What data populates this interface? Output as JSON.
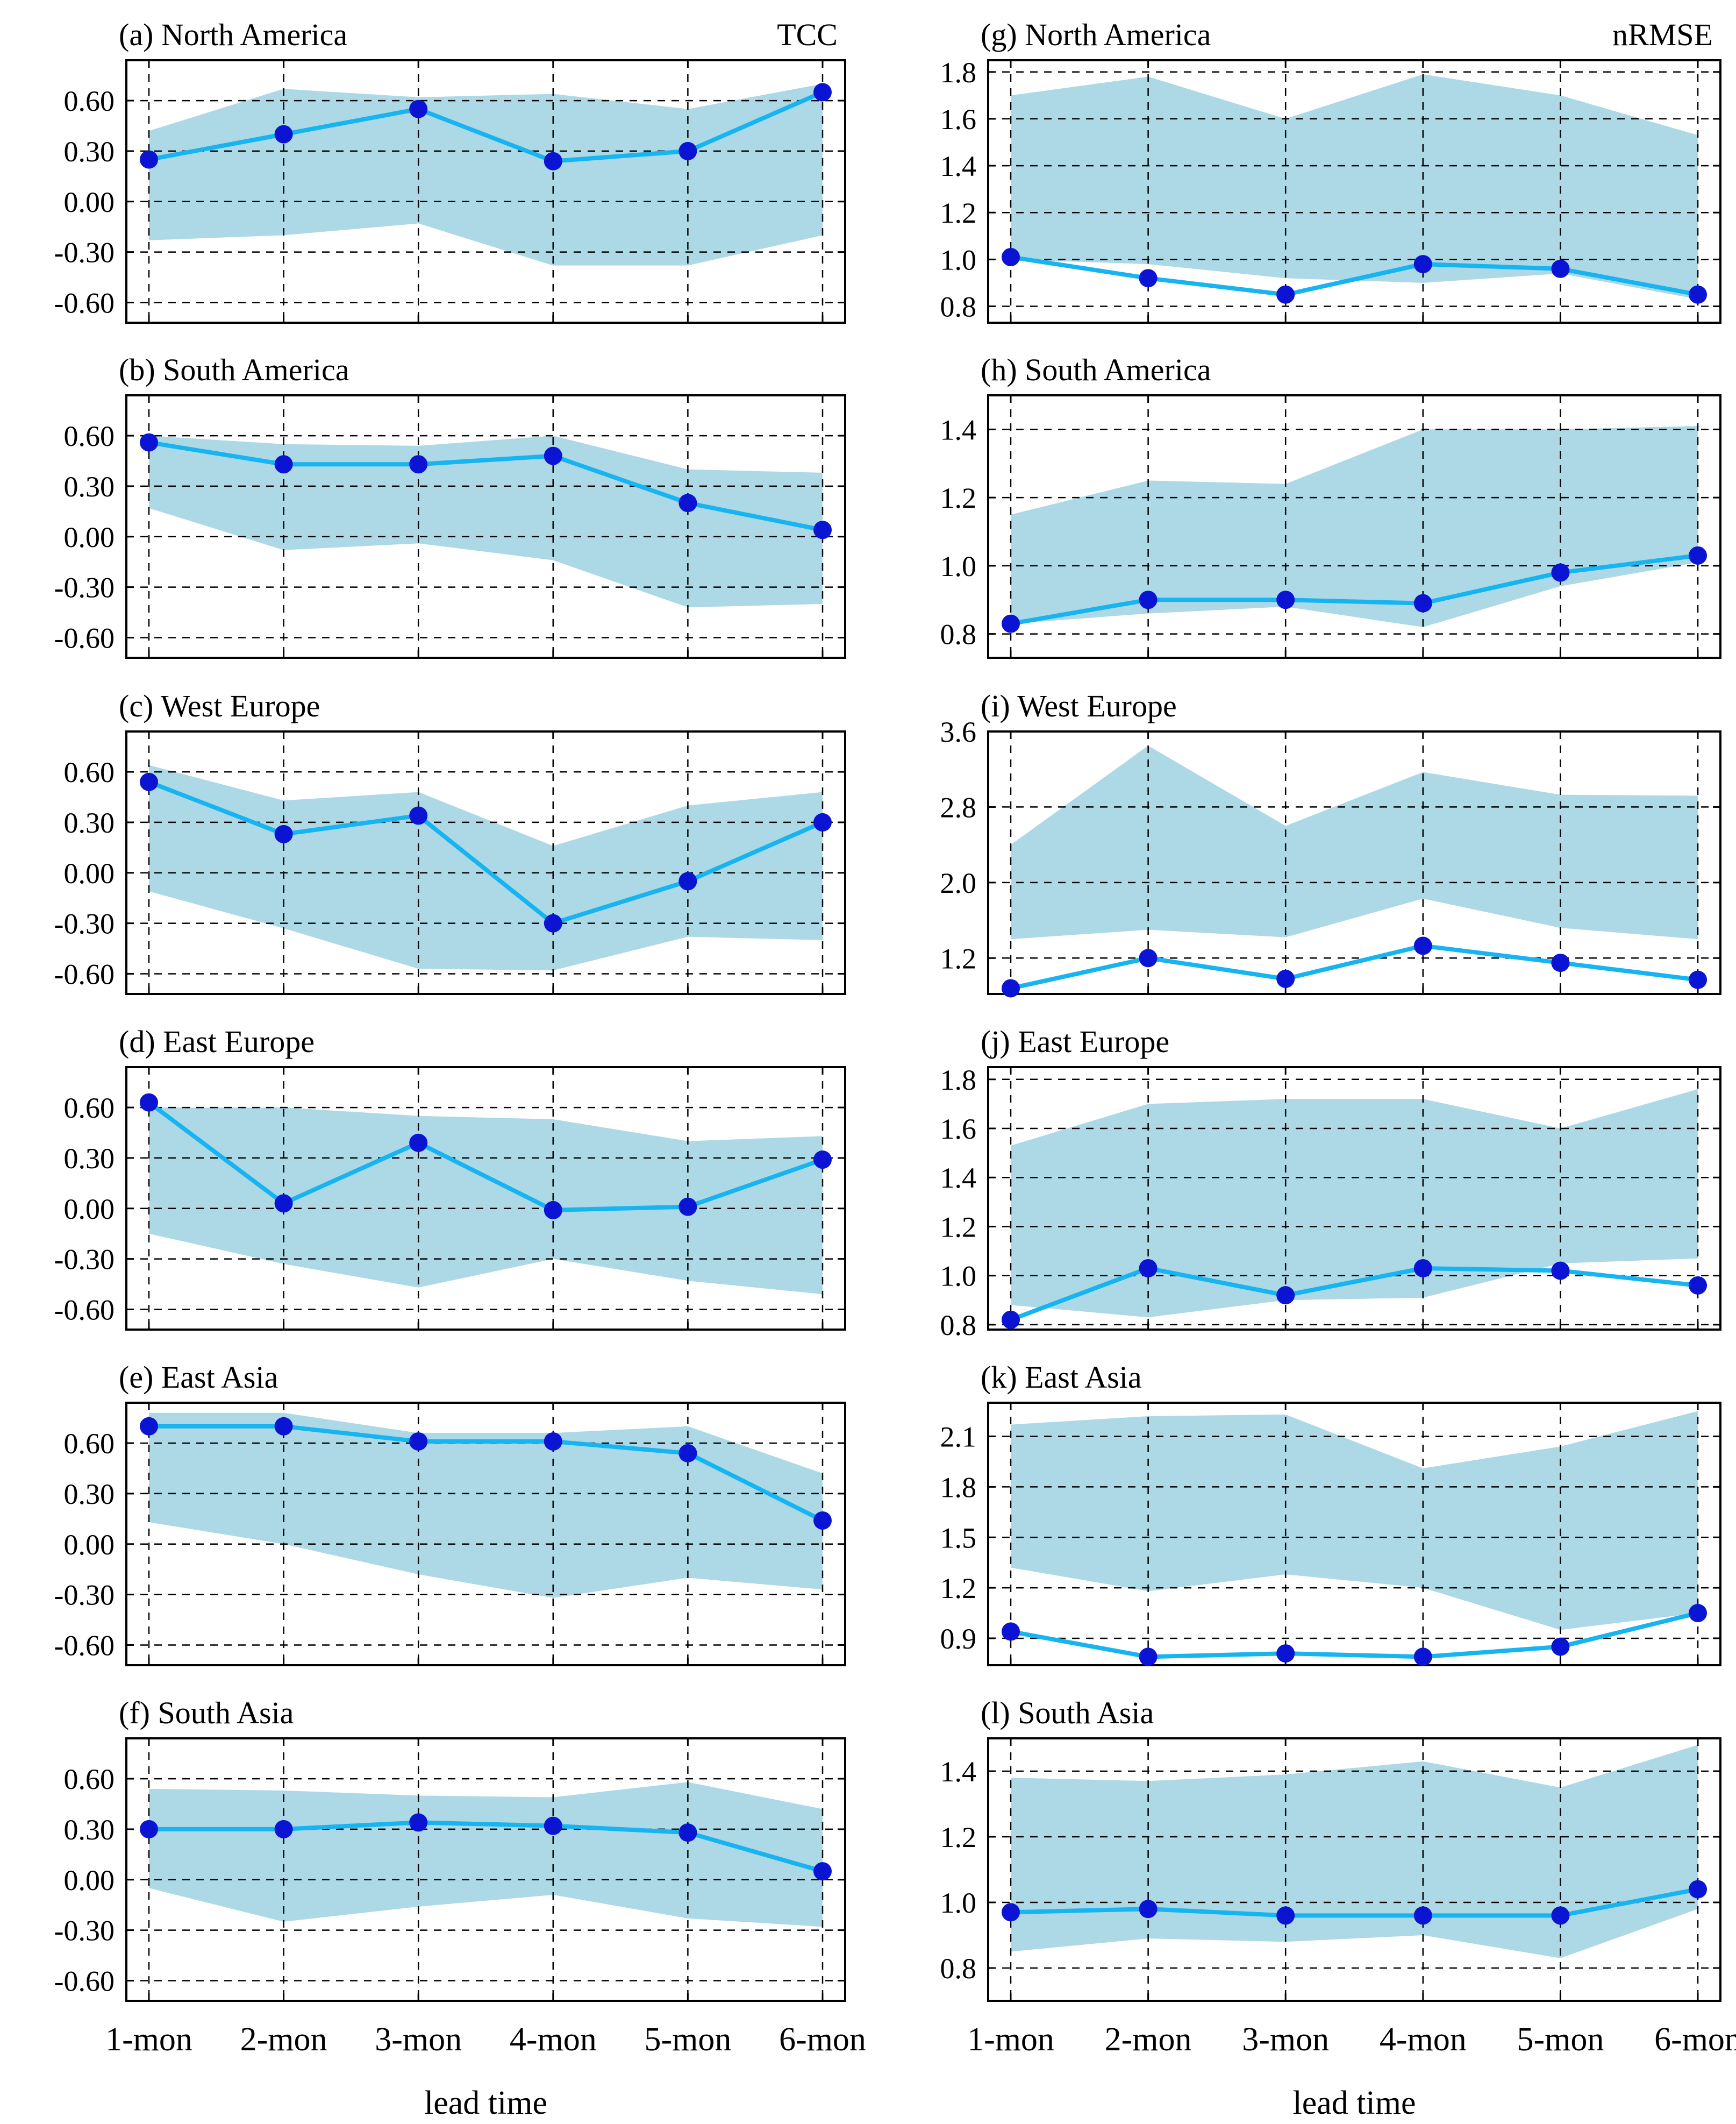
{
  "chart_data": {
    "type": "line",
    "layout": "6 rows x 2 columns; left column TCC, right column nRMSE",
    "x_categories": [
      "1-mon",
      "2-mon",
      "3-mon",
      "4-mon",
      "5-mon",
      "6-mon"
    ],
    "xlabel": "lead time",
    "column_labels": [
      "TCC",
      "nRMSE"
    ],
    "series_colors": {
      "line": "#16b4f0",
      "marker": "#0a14d2",
      "band": "#add8e6"
    },
    "panels": [
      {
        "id": "a",
        "title": "(a) North America",
        "metric": "TCC",
        "ylim": [
          -0.72,
          0.84
        ],
        "yticks": [
          -0.6,
          -0.3,
          0.0,
          0.3,
          0.6
        ],
        "ytick_labels": [
          "-0.60",
          "-0.30",
          "0.00",
          "0.30",
          "0.60"
        ],
        "values": [
          0.25,
          0.4,
          0.55,
          0.24,
          0.3,
          0.65
        ],
        "band_upper": [
          0.42,
          0.67,
          0.62,
          0.64,
          0.55,
          0.7
        ],
        "band_lower": [
          -0.23,
          -0.2,
          -0.13,
          -0.38,
          -0.38,
          -0.2
        ]
      },
      {
        "id": "b",
        "title": "(b) South America",
        "metric": "TCC",
        "ylim": [
          -0.72,
          0.84
        ],
        "yticks": [
          -0.6,
          -0.3,
          0.0,
          0.3,
          0.6
        ],
        "ytick_labels": [
          "-0.60",
          "-0.30",
          "0.00",
          "0.30",
          "0.60"
        ],
        "values": [
          0.56,
          0.43,
          0.43,
          0.48,
          0.2,
          0.04
        ],
        "band_upper": [
          0.6,
          0.55,
          0.54,
          0.6,
          0.4,
          0.38
        ],
        "band_lower": [
          0.17,
          -0.08,
          -0.04,
          -0.14,
          -0.42,
          -0.4
        ]
      },
      {
        "id": "c",
        "title": "(c) West Europe",
        "metric": "TCC",
        "ylim": [
          -0.72,
          0.84
        ],
        "yticks": [
          -0.6,
          -0.3,
          0.0,
          0.3,
          0.6
        ],
        "ytick_labels": [
          "-0.60",
          "-0.30",
          "0.00",
          "0.30",
          "0.60"
        ],
        "values": [
          0.54,
          0.23,
          0.34,
          -0.3,
          -0.05,
          0.3
        ],
        "band_upper": [
          0.64,
          0.43,
          0.48,
          0.16,
          0.4,
          0.48
        ],
        "band_lower": [
          -0.11,
          -0.33,
          -0.57,
          -0.58,
          -0.38,
          -0.4
        ]
      },
      {
        "id": "d",
        "title": "(d) East Europe",
        "metric": "TCC",
        "ylim": [
          -0.72,
          0.84
        ],
        "yticks": [
          -0.6,
          -0.3,
          0.0,
          0.3,
          0.6
        ],
        "ytick_labels": [
          "-0.60",
          "-0.30",
          "0.00",
          "0.30",
          "0.60"
        ],
        "values": [
          0.63,
          0.03,
          0.39,
          -0.01,
          0.01,
          0.29
        ],
        "band_upper": [
          0.6,
          0.6,
          0.55,
          0.53,
          0.4,
          0.43
        ],
        "band_lower": [
          -0.15,
          -0.33,
          -0.47,
          -0.3,
          -0.43,
          -0.51
        ]
      },
      {
        "id": "e",
        "title": "(e) East Asia",
        "metric": "TCC",
        "ylim": [
          -0.72,
          0.84
        ],
        "yticks": [
          -0.6,
          -0.3,
          0.0,
          0.3,
          0.6
        ],
        "ytick_labels": [
          "-0.60",
          "-0.30",
          "0.00",
          "0.30",
          "0.60"
        ],
        "values": [
          0.7,
          0.7,
          0.61,
          0.61,
          0.54,
          0.14
        ],
        "band_upper": [
          0.78,
          0.78,
          0.66,
          0.66,
          0.7,
          0.42
        ],
        "band_lower": [
          0.13,
          0.0,
          -0.18,
          -0.32,
          -0.2,
          -0.27
        ]
      },
      {
        "id": "f",
        "title": "(f) South Asia",
        "metric": "TCC",
        "ylim": [
          -0.72,
          0.84
        ],
        "yticks": [
          -0.6,
          -0.3,
          0.0,
          0.3,
          0.6
        ],
        "ytick_labels": [
          "-0.60",
          "-0.30",
          "0.00",
          "0.30",
          "0.60"
        ],
        "values": [
          0.3,
          0.3,
          0.34,
          0.32,
          0.28,
          0.05
        ],
        "band_upper": [
          0.54,
          0.53,
          0.5,
          0.49,
          0.58,
          0.42
        ],
        "band_lower": [
          -0.05,
          -0.25,
          -0.16,
          -0.09,
          -0.23,
          -0.28
        ]
      },
      {
        "id": "g",
        "title": "(g) North America",
        "metric": "nRMSE",
        "ylim": [
          0.73,
          1.85
        ],
        "yticks": [
          0.8,
          1.0,
          1.2,
          1.4,
          1.6,
          1.8
        ],
        "ytick_labels": [
          "0.8",
          "1.0",
          "1.2",
          "1.4",
          "1.6",
          "1.8"
        ],
        "values": [
          1.01,
          0.92,
          0.85,
          0.98,
          0.96,
          0.85
        ],
        "band_upper": [
          1.7,
          1.78,
          1.6,
          1.79,
          1.7,
          1.53
        ],
        "band_lower": [
          1.0,
          0.98,
          0.92,
          0.9,
          0.94,
          0.83
        ]
      },
      {
        "id": "h",
        "title": "(h) South America",
        "metric": "nRMSE",
        "ylim": [
          0.73,
          1.5
        ],
        "yticks": [
          0.8,
          1.0,
          1.2,
          1.4
        ],
        "ytick_labels": [
          "0.8",
          "1.0",
          "1.2",
          "1.4"
        ],
        "values": [
          0.83,
          0.9,
          0.9,
          0.89,
          0.98,
          1.03
        ],
        "band_upper": [
          1.15,
          1.25,
          1.24,
          1.4,
          1.4,
          1.41
        ],
        "band_lower": [
          0.83,
          0.86,
          0.88,
          0.82,
          0.94,
          1.01
        ]
      },
      {
        "id": "i",
        "title": "(i) West Europe",
        "metric": "nRMSE",
        "ylim": [
          0.82,
          3.6
        ],
        "yticks": [
          1.2,
          2.0,
          2.8,
          3.6
        ],
        "ytick_labels": [
          "1.2",
          "2.0",
          "2.8",
          "3.6"
        ],
        "values": [
          0.88,
          1.2,
          0.98,
          1.33,
          1.15,
          0.97
        ],
        "band_upper": [
          2.4,
          3.45,
          2.6,
          3.17,
          2.93,
          2.92
        ],
        "band_lower": [
          1.4,
          1.5,
          1.42,
          1.83,
          1.52,
          1.4
        ]
      },
      {
        "id": "j",
        "title": "(j) East Europe",
        "metric": "nRMSE",
        "ylim": [
          0.78,
          1.85
        ],
        "yticks": [
          0.8,
          1.0,
          1.2,
          1.4,
          1.6,
          1.8
        ],
        "ytick_labels": [
          "0.8",
          "1.0",
          "1.2",
          "1.4",
          "1.6",
          "1.8"
        ],
        "values": [
          0.82,
          1.03,
          0.92,
          1.03,
          1.02,
          0.96
        ],
        "band_upper": [
          1.53,
          1.7,
          1.72,
          1.72,
          1.6,
          1.76
        ],
        "band_lower": [
          0.88,
          0.83,
          0.9,
          0.91,
          1.05,
          1.07
        ]
      },
      {
        "id": "k",
        "title": "(k) East Asia",
        "metric": "nRMSE",
        "ylim": [
          0.74,
          2.3
        ],
        "yticks": [
          0.9,
          1.2,
          1.5,
          1.8,
          2.1
        ],
        "ytick_labels": [
          "0.9",
          "1.2",
          "1.5",
          "1.8",
          "2.1"
        ],
        "values": [
          0.94,
          0.79,
          0.81,
          0.79,
          0.85,
          1.05
        ],
        "band_upper": [
          2.17,
          2.22,
          2.23,
          1.91,
          2.04,
          2.25
        ],
        "band_lower": [
          1.32,
          1.18,
          1.28,
          1.2,
          0.95,
          1.05
        ]
      },
      {
        "id": "l",
        "title": "(l) South Asia",
        "metric": "nRMSE",
        "ylim": [
          0.7,
          1.5
        ],
        "yticks": [
          0.8,
          1.0,
          1.2,
          1.4
        ],
        "ytick_labels": [
          "0.8",
          "1.0",
          "1.2",
          "1.4"
        ],
        "values": [
          0.97,
          0.98,
          0.96,
          0.96,
          0.96,
          1.04
        ],
        "band_upper": [
          1.38,
          1.37,
          1.39,
          1.43,
          1.35,
          1.48
        ],
        "band_lower": [
          0.85,
          0.89,
          0.88,
          0.9,
          0.83,
          0.98
        ]
      }
    ]
  }
}
